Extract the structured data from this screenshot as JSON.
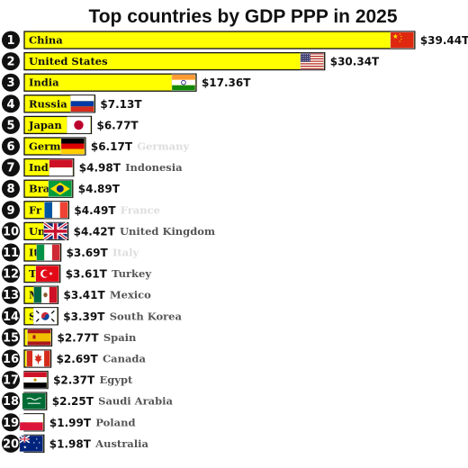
{
  "chart_data": {
    "type": "bar",
    "orientation": "horizontal",
    "title": "Top countries by GDP PPP in 2025",
    "legend": "none",
    "grid": false,
    "colors": {
      "bar": "#ffff00",
      "bar_border": "#111111",
      "rank_circle": "#111111"
    },
    "series": [
      {
        "values": [
          39.44,
          30.34,
          17.36,
          7.13,
          6.77,
          6.17,
          4.98,
          4.89,
          4.49,
          4.42,
          3.69,
          3.61,
          3.41,
          3.39,
          2.77,
          2.69,
          2.37,
          2.25,
          1.99,
          1.98
        ]
      }
    ],
    "rows": [
      {
        "rank": "1",
        "inside": "China",
        "value": 39.44,
        "value_label": "$39.44T",
        "outside": "",
        "flag": "china-flag"
      },
      {
        "rank": "2",
        "inside": "United States",
        "value": 30.34,
        "value_label": "$30.34T",
        "outside": "",
        "flag": "usa-flag"
      },
      {
        "rank": "3",
        "inside": "India",
        "value": 17.36,
        "value_label": "$17.36T",
        "outside": "",
        "flag": "india-flag"
      },
      {
        "rank": "4",
        "inside": "Russia",
        "value": 7.13,
        "value_label": "$7.13T",
        "outside": "",
        "flag": "russia-flag"
      },
      {
        "rank": "5",
        "inside": "Japan",
        "value": 6.77,
        "value_label": "$6.77T",
        "outside": "",
        "flag": "japan-flag"
      },
      {
        "rank": "6",
        "inside": "Germa",
        "value": 6.17,
        "value_label": "$6.17T",
        "outside": "Germany",
        "outside_faint": true,
        "flag": "germany-flag"
      },
      {
        "rank": "7",
        "inside": "Indo",
        "value": 4.98,
        "value_label": "$4.98T",
        "outside": "Indonesia",
        "outside_faint": false,
        "flag": "indonesia-flag"
      },
      {
        "rank": "8",
        "inside": "Bra",
        "value": 4.89,
        "value_label": "$4.89T",
        "outside": "",
        "flag": "brazil-flag"
      },
      {
        "rank": "9",
        "inside": "Fr",
        "value": 4.49,
        "value_label": "$4.49T",
        "outside": "France",
        "outside_faint": true,
        "flag": "france-flag"
      },
      {
        "rank": "10",
        "inside": "Un",
        "value": 4.42,
        "value_label": "$4.42T",
        "outside": "United Kingdom",
        "outside_faint": false,
        "flag": "uk-flag"
      },
      {
        "rank": "11",
        "inside": "It",
        "value": 3.69,
        "value_label": "$3.69T",
        "outside": "Italy",
        "outside_faint": true,
        "flag": "italy-flag"
      },
      {
        "rank": "12",
        "inside": "T",
        "value": 3.61,
        "value_label": "$3.61T",
        "outside": "Turkey",
        "outside_faint": false,
        "flag": "turkey-flag"
      },
      {
        "rank": "13",
        "inside": "M",
        "value": 3.41,
        "value_label": "$3.41T",
        "outside": "Mexico",
        "outside_faint": false,
        "flag": "mexico-flag"
      },
      {
        "rank": "14",
        "inside": "S",
        "value": 3.39,
        "value_label": "$3.39T",
        "outside": "South Korea",
        "outside_faint": false,
        "flag": "south-korea-flag"
      },
      {
        "rank": "15",
        "inside": "",
        "value": 2.77,
        "value_label": "$2.77T",
        "outside": "Spain",
        "outside_faint": false,
        "flag": "spain-flag"
      },
      {
        "rank": "16",
        "inside": "",
        "value": 2.69,
        "value_label": "$2.69T",
        "outside": "Canada",
        "outside_faint": false,
        "flag": "canada-flag"
      },
      {
        "rank": "17",
        "inside": "",
        "value": 2.37,
        "value_label": "$2.37T",
        "outside": "Egypt",
        "outside_faint": false,
        "flag": "egypt-flag"
      },
      {
        "rank": "18",
        "inside": "",
        "value": 2.25,
        "value_label": "$2.25T",
        "outside": "Saudi Arabia",
        "outside_faint": false,
        "flag": "saudi-arabia-flag"
      },
      {
        "rank": "19",
        "inside": "",
        "value": 1.99,
        "value_label": "$1.99T",
        "outside": "Poland",
        "outside_faint": false,
        "flag": "poland-flag"
      },
      {
        "rank": "20",
        "inside": "",
        "value": 1.98,
        "value_label": "$1.98T",
        "outside": "Australia",
        "outside_faint": false,
        "flag": "australia-flag"
      }
    ]
  }
}
